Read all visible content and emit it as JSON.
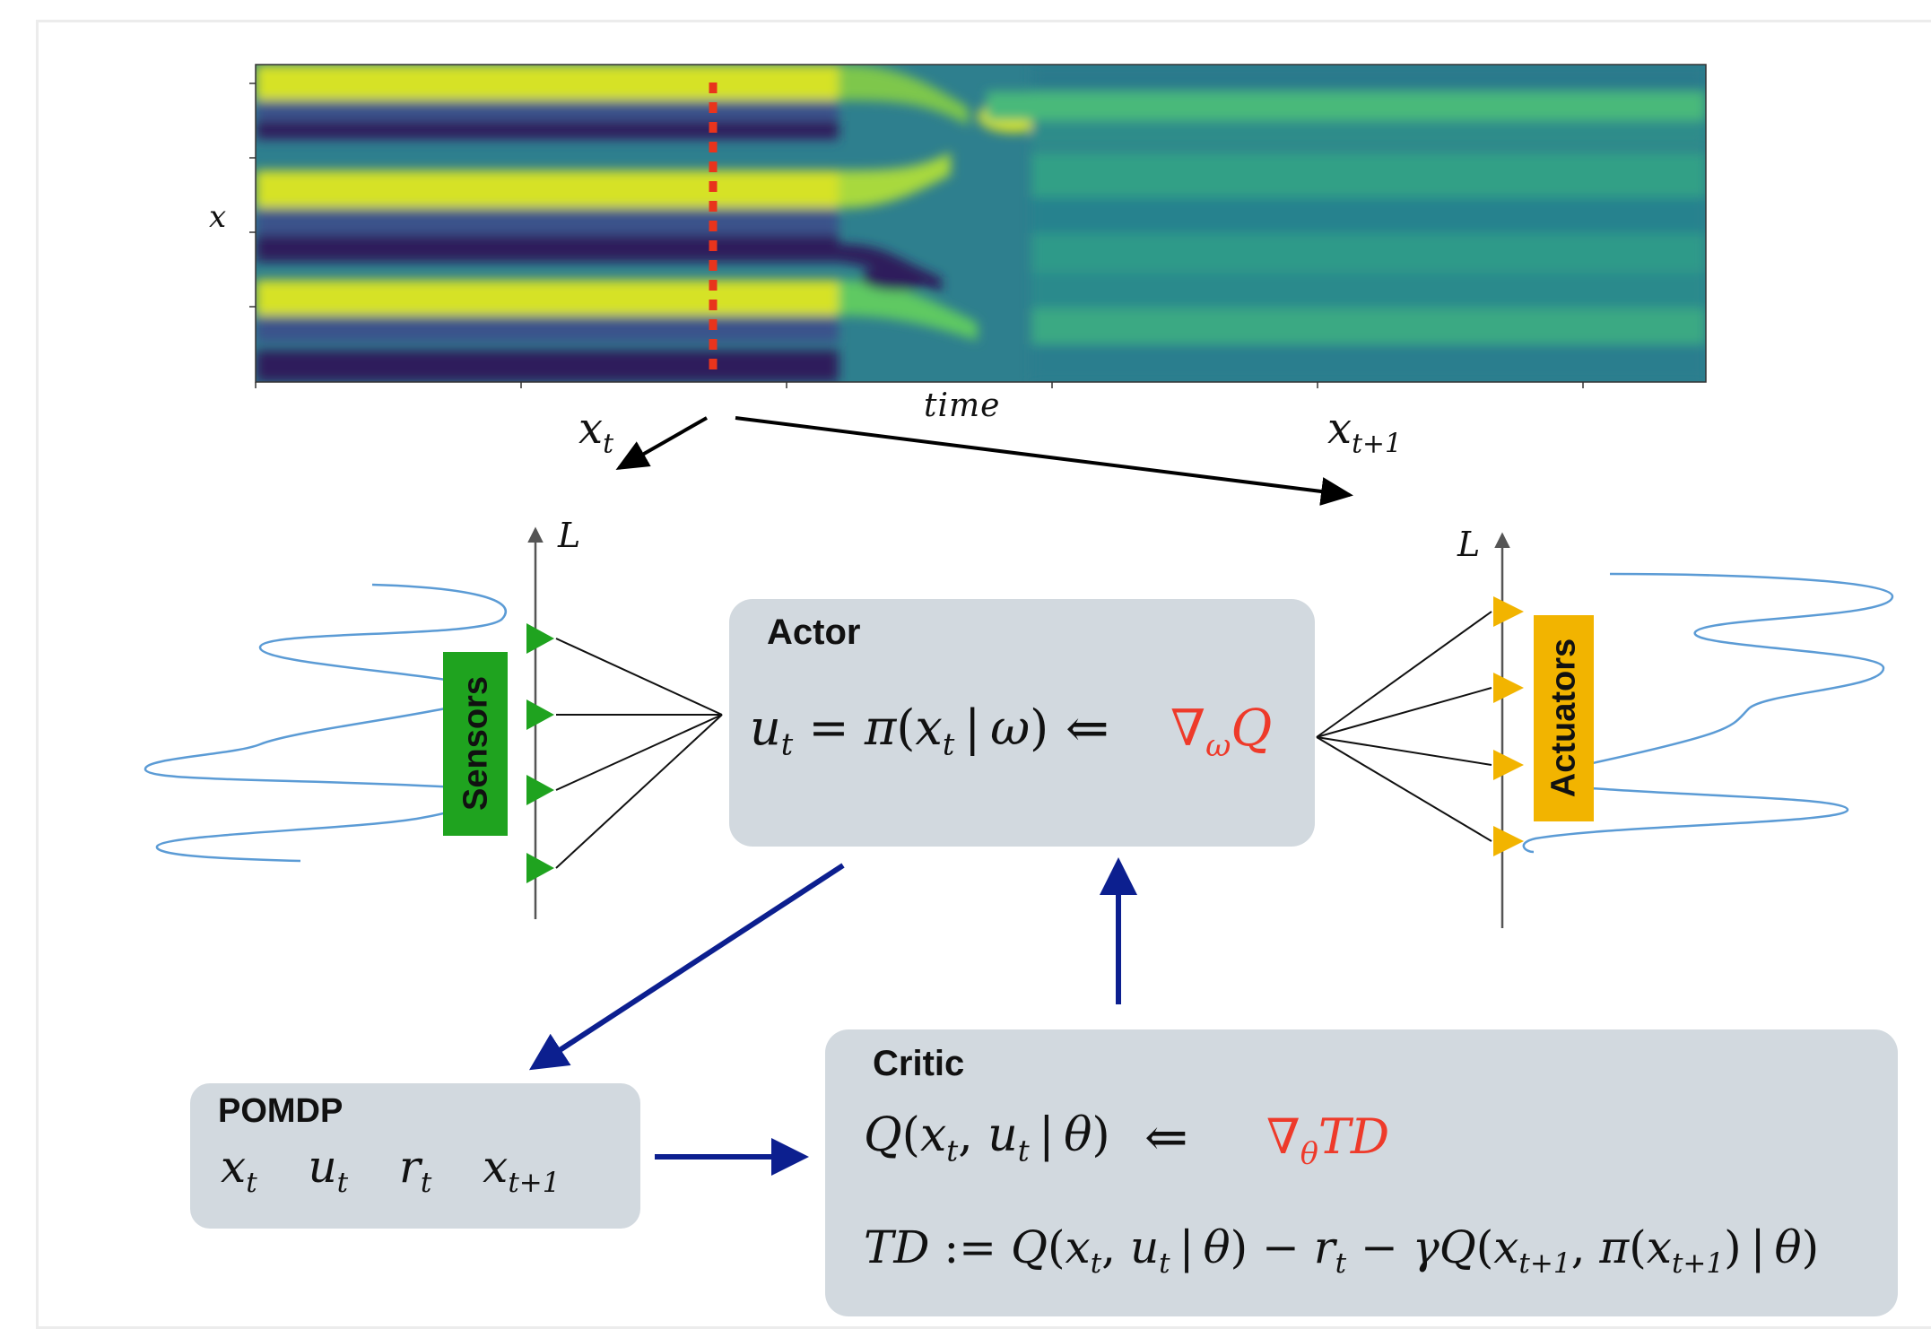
{
  "heatmap": {
    "y_label": "x",
    "x_label": "time"
  },
  "state_labels": {
    "current_base": "x",
    "current_sub": "t",
    "next_base": "x",
    "next_sub": "t+1"
  },
  "axes": {
    "sensor_axis_label": "L",
    "actuator_axis_label": "L"
  },
  "sensors": {
    "label": "Sensors",
    "color": "#1fa31f"
  },
  "actuators": {
    "label": "Actuators",
    "color": "#f2b400"
  },
  "actor": {
    "title": "Actor",
    "policy": "u_t = π(x_t | ω)",
    "arrow": "⇐",
    "gradient": "∇_ω Q"
  },
  "critic": {
    "title": "Critic",
    "q_function": "Q(x_t, u_t | θ)",
    "arrow": "⇐",
    "gradient": "∇_θ TD",
    "td_definition": "TD := Q(x_t, u_t | θ) − r_t − γQ(x_{t+1}, π(x_{t+1}) | θ)"
  },
  "pomdp": {
    "title": "POMDP",
    "items": [
      "x_t",
      "u_t",
      "r_t",
      "x_{t+1}"
    ]
  },
  "colors": {
    "box_fill": "#d2d9df",
    "gradient_text": "#ee3a2a",
    "flow_arrow": "#0c1f8f",
    "signal_line": "#5b9bd5",
    "marker_line": "#e8341c"
  }
}
